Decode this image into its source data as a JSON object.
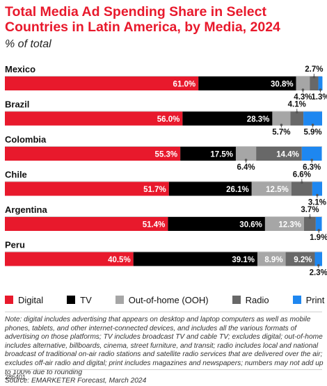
{
  "header": {
    "title": "Total Media Ad Spending Share in Select Countries in Latin America, by Media, 2024",
    "subtitle": "% of total"
  },
  "chart_data": {
    "type": "bar",
    "orientation": "horizontal",
    "stacked": true,
    "categories": [
      "Mexico",
      "Brazil",
      "Colombia",
      "Chile",
      "Argentina",
      "Peru"
    ],
    "series": [
      {
        "name": "Digital",
        "color": "#e8192c",
        "values": [
          61.0,
          56.0,
          55.3,
          51.7,
          51.4,
          40.5
        ],
        "labels": [
          "61.0%",
          "56.0%",
          "55.3%",
          "51.7%",
          "51.4%",
          "40.5%"
        ]
      },
      {
        "name": "TV",
        "color": "#000000",
        "values": [
          30.8,
          28.3,
          17.5,
          26.1,
          30.6,
          39.1
        ],
        "labels": [
          "30.8%",
          "28.3%",
          "17.5%",
          "26.1%",
          "30.6%",
          "39.1%"
        ]
      },
      {
        "name": "Out-of-home (OOH)",
        "color": "#a6a6a6",
        "values": [
          4.3,
          5.7,
          6.4,
          12.5,
          12.3,
          8.9
        ],
        "labels": [
          "4.3%",
          "5.7%",
          "6.4%",
          "12.5%",
          "12.3%",
          "8.9%"
        ]
      },
      {
        "name": "Radio",
        "color": "#686868",
        "values": [
          2.7,
          4.1,
          14.4,
          6.6,
          3.7,
          9.2
        ],
        "labels": [
          "2.7%",
          "4.1%",
          "14.4%",
          "6.6%",
          "3.7%",
          "9.2%"
        ]
      },
      {
        "name": "Print",
        "color": "#1e87f0",
        "values": [
          1.3,
          5.9,
          6.3,
          3.1,
          1.9,
          2.3
        ],
        "labels": [
          "1.3%",
          "5.9%",
          "6.3%",
          "3.1%",
          "1.9%",
          "2.3%"
        ]
      }
    ],
    "xlim": [
      0,
      100
    ],
    "legend_position": "bottom"
  },
  "footer": {
    "note": "Note: digital includes advertising that appears on desktop and laptop computers as well as mobile phones, tablets, and other internet-connected devices, and includes all the various formats of advertising on those platforms; TV includes broadcast TV and cable TV; excludes digital; out-of-home includes alternative, billboards, cinema, street furniture, and transit; radio includes local and national broadcast of traditional on-air radio stations and satellite radio services that are delivered over the air; excludes off-air radio and digital; print includes magazines and newspapers; numbers may not add up to 100% due to rounding",
    "source": "Source: EMARKETER Forecast, March 2024",
    "chart_id": "286401"
  }
}
